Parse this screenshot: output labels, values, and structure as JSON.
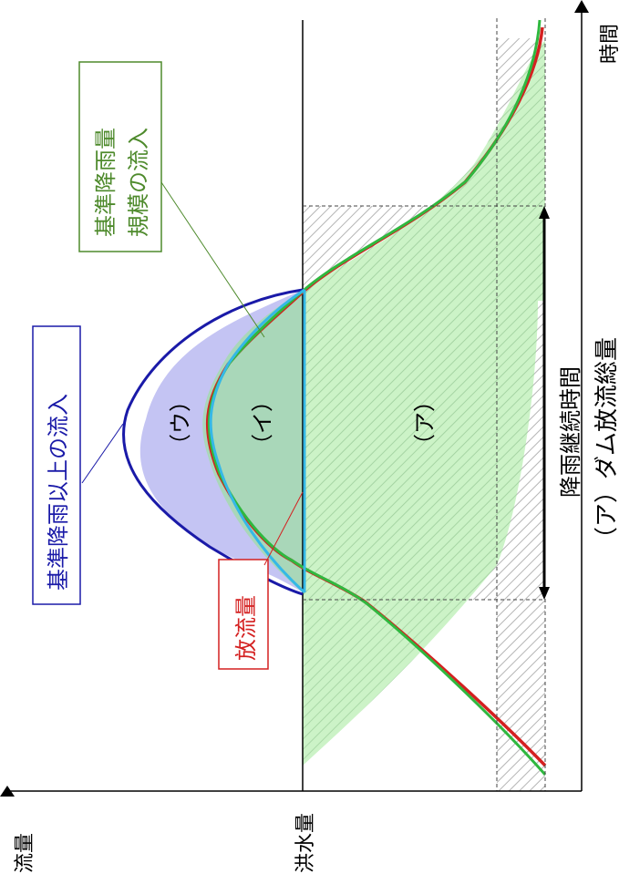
{
  "axes": {
    "y_label": "流量",
    "x_label": "時間",
    "flood_label": "洪水量"
  },
  "labels": {
    "beyond_inflow": "基準降雨以上の流入",
    "discharge": "放流量",
    "design_inflow_line1": "基準降雨量",
    "design_inflow_line2": "規模の流入",
    "duration": "降雨継続時間",
    "region_a": "（ア）",
    "region_i": "（イ）",
    "region_u": "（ウ）",
    "caption": "（ア）ダム放流総量"
  },
  "colors": {
    "beyond_inflow": "#1a1aa8",
    "beyond_fill": "#c3c3f2",
    "design_inflow": "#2fa84f",
    "design_fill": "#c6f0c0",
    "mid_fill": "#a9d7b9",
    "discharge": "#d42020",
    "flood_cap": "#35b8e6",
    "box_green": "#4e8a2c",
    "hatch": "#bbbbbb"
  }
}
